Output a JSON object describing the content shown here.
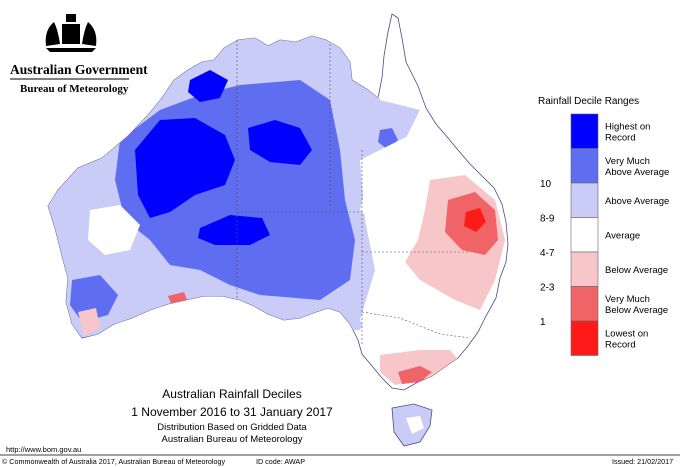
{
  "header": {
    "government": "Australian Government",
    "bureau": "Bureau of Meteorology"
  },
  "legend": {
    "title": "Rainfall Decile Ranges",
    "entries": [
      {
        "range": "",
        "label_lines": [
          "Highest on",
          "Record"
        ],
        "color": "#0000ff"
      },
      {
        "range": "10",
        "label_lines": [
          "Very Much",
          "Above Average"
        ],
        "color": "#5f6ef0"
      },
      {
        "range": "8-9",
        "label_lines": [
          "Above Average"
        ],
        "color": "#c8ccf6"
      },
      {
        "range": "4-7",
        "label_lines": [
          "Average"
        ],
        "color": "#ffffff"
      },
      {
        "range": "2-3",
        "label_lines": [
          "Below Average"
        ],
        "color": "#f7c6c8"
      },
      {
        "range": "1",
        "label_lines": [
          "Very Much",
          "Below Average"
        ],
        "color": "#f06468"
      },
      {
        "range": "",
        "label_lines": [
          "Lowest on",
          "Record"
        ],
        "color": "#ff1a1a"
      }
    ]
  },
  "map_title": {
    "line1": "Australian Rainfall Deciles",
    "line2": "1 November 2016 to 31 January 2017",
    "line3": "Distribution Based on Gridded Data",
    "line4": "Australian Bureau of Meteorology"
  },
  "footer": {
    "url": "http://www.bom.gov.au",
    "copyright": "© Commonwealth of Australia 2017, Australian Bureau of Meteorology",
    "id_code": "ID code: AWAP",
    "issued": "Issued: 21/02/2017"
  },
  "colors": {
    "highest": "#0000ff",
    "very_much_above": "#5f6ef0",
    "above": "#c8ccf6",
    "average": "#ffffff",
    "below": "#f7c6c8",
    "very_much_below": "#f06468",
    "lowest": "#ff1a1a"
  }
}
